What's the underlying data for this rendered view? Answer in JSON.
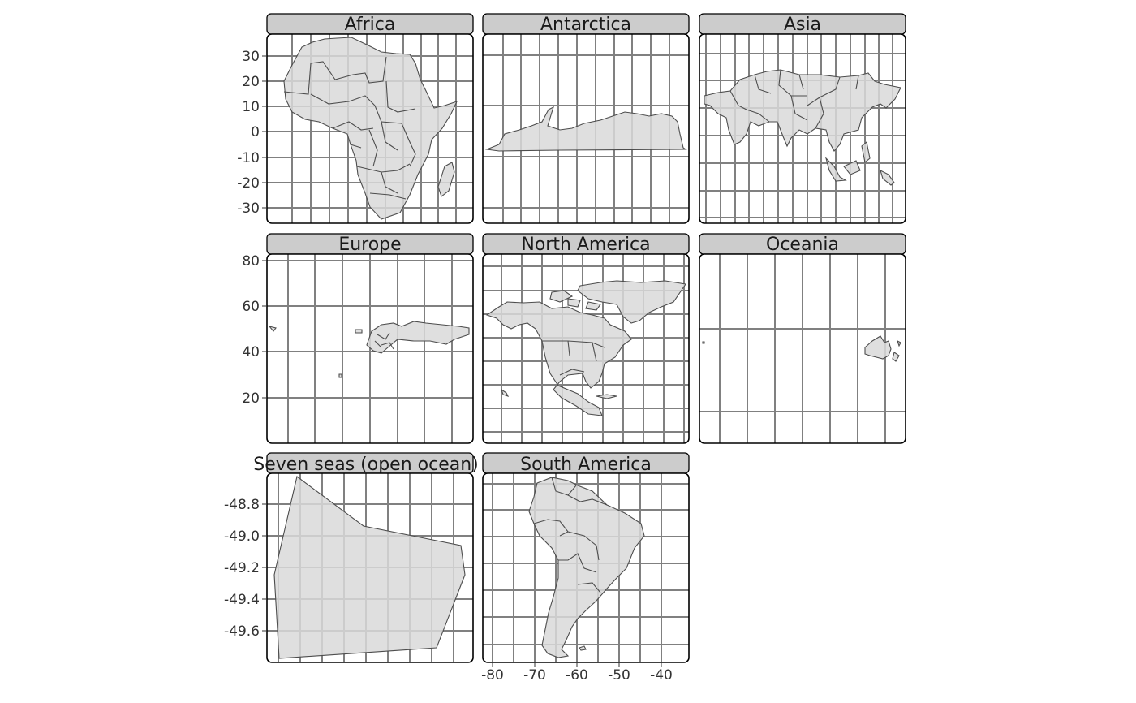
{
  "figure": {
    "type": "faceted-map",
    "facet_by": "continent",
    "land_fill": "#d9d9d9",
    "border_color": "#4d4d4d",
    "grid_color": "#808080",
    "strip_fill": "#cccccc",
    "panel_border": "#000000"
  },
  "panels": [
    {
      "label": "Africa",
      "y_ticks": [
        "30",
        "20",
        "10",
        "0",
        "-10",
        "-20",
        "-30"
      ]
    },
    {
      "label": "Antarctica"
    },
    {
      "label": "Asia"
    },
    {
      "label": "Europe",
      "y_ticks": [
        "80",
        "60",
        "40",
        "20"
      ]
    },
    {
      "label": "North America"
    },
    {
      "label": "Oceania"
    },
    {
      "label": "Seven seas (open ocean)",
      "y_ticks": [
        "-48.8",
        "-49.0",
        "-49.2",
        "-49.4",
        "-49.6"
      ]
    },
    {
      "label": "South America",
      "x_ticks": [
        "-80",
        "-70",
        "-60",
        "-50",
        "-40"
      ]
    }
  ]
}
